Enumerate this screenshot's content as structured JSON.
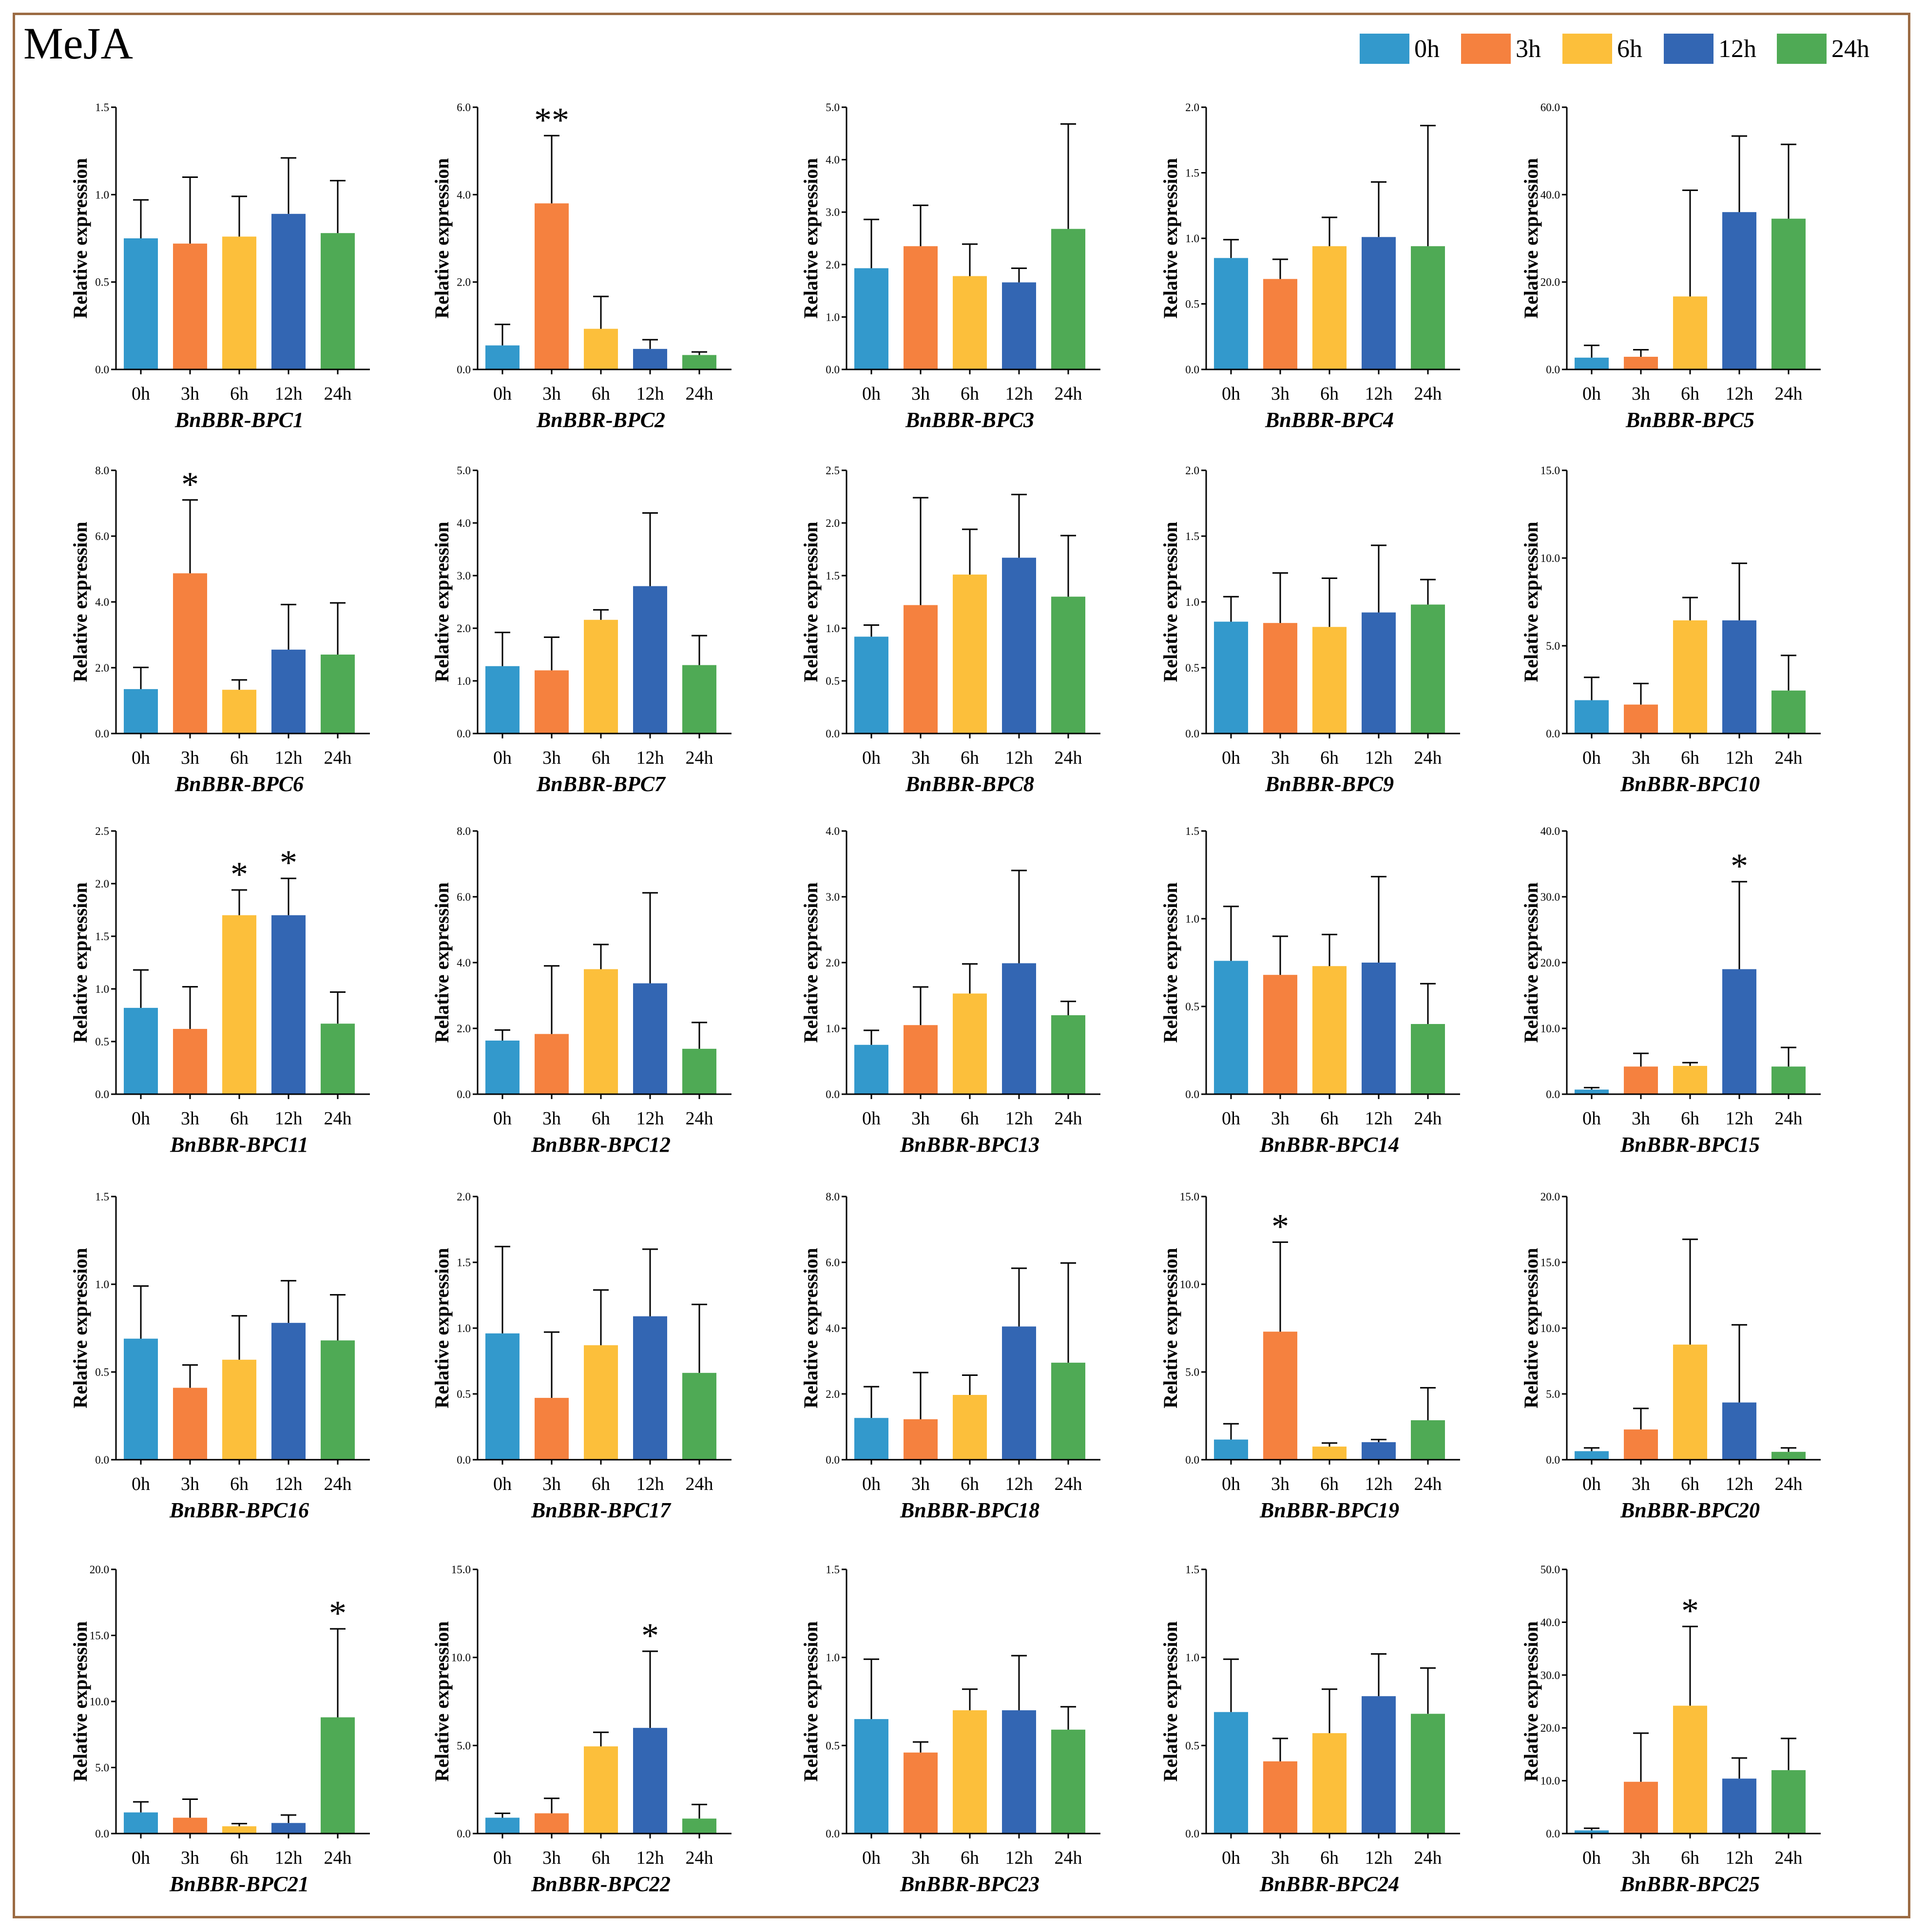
{
  "title": "MeJA",
  "legend": [
    {
      "label": "0h",
      "color": "#3399cc"
    },
    {
      "label": "3h",
      "color": "#f5813f"
    },
    {
      "label": "6h",
      "color": "#fcbf3b"
    },
    {
      "label": "12h",
      "color": "#3366b3"
    },
    {
      "label": "24h",
      "color": "#4faa55"
    }
  ],
  "chart_data": [
    {
      "type": "bar",
      "title": "BnBBR-BPC1",
      "ylabel": "Relative expression",
      "categories": [
        "0h",
        "3h",
        "6h",
        "12h",
        "24h"
      ],
      "ylim": [
        0,
        1.5
      ],
      "yticks": [
        "0.0",
        "0.5",
        "1.0",
        "1.5"
      ],
      "values": [
        0.75,
        0.72,
        0.76,
        0.89,
        0.78
      ],
      "errors": [
        0.22,
        0.38,
        0.23,
        0.32,
        0.3
      ],
      "significance": [
        "",
        "",
        "",
        "",
        ""
      ]
    },
    {
      "type": "bar",
      "title": "BnBBR-BPC2",
      "ylabel": "Relative expression",
      "categories": [
        "0h",
        "3h",
        "6h",
        "12h",
        "24h"
      ],
      "ylim": [
        0,
        6
      ],
      "yticks": [
        "0.0",
        "2.0",
        "4.0",
        "6.0"
      ],
      "values": [
        0.55,
        3.8,
        0.93,
        0.47,
        0.33
      ],
      "errors": [
        0.48,
        1.55,
        0.74,
        0.21,
        0.07
      ],
      "significance": [
        "",
        "**",
        "",
        "",
        ""
      ]
    },
    {
      "type": "bar",
      "title": "BnBBR-BPC3",
      "ylabel": "Relative expression",
      "categories": [
        "0h",
        "3h",
        "6h",
        "12h",
        "24h"
      ],
      "ylim": [
        0,
        5
      ],
      "yticks": [
        "0.0",
        "1.0",
        "2.0",
        "3.0",
        "4.0",
        "5.0"
      ],
      "values": [
        1.93,
        2.35,
        1.78,
        1.66,
        2.68
      ],
      "errors": [
        0.93,
        0.78,
        0.61,
        0.27,
        2.0
      ],
      "significance": [
        "",
        "",
        "",
        "",
        ""
      ]
    },
    {
      "type": "bar",
      "title": "BnBBR-BPC4",
      "ylabel": "Relative expression",
      "categories": [
        "0h",
        "3h",
        "6h",
        "12h",
        "24h"
      ],
      "ylim": [
        0,
        2
      ],
      "yticks": [
        "0.0",
        "0.5",
        "1.0",
        "1.5",
        "2.0"
      ],
      "values": [
        0.85,
        0.69,
        0.94,
        1.01,
        0.94
      ],
      "errors": [
        0.14,
        0.15,
        0.22,
        0.42,
        0.92
      ],
      "significance": [
        "",
        "",
        "",
        "",
        ""
      ]
    },
    {
      "type": "bar",
      "title": "BnBBR-BPC5",
      "ylabel": "Relative expression",
      "categories": [
        "0h",
        "3h",
        "6h",
        "12h",
        "24h"
      ],
      "ylim": [
        0,
        60
      ],
      "yticks": [
        "0.0",
        "20.0",
        "40.0",
        "60.0"
      ],
      "values": [
        2.7,
        2.9,
        16.7,
        36.0,
        34.5
      ],
      "errors": [
        2.8,
        1.6,
        24.3,
        17.4,
        17.0
      ],
      "significance": [
        "",
        "",
        "",
        "",
        ""
      ]
    },
    {
      "type": "bar",
      "title": "BnBBR-BPC6",
      "ylabel": "Relative expression",
      "categories": [
        "0h",
        "3h",
        "6h",
        "12h",
        "24h"
      ],
      "ylim": [
        0,
        8
      ],
      "yticks": [
        "0.0",
        "2.0",
        "4.0",
        "6.0",
        "8.0"
      ],
      "values": [
        1.35,
        4.87,
        1.33,
        2.55,
        2.4
      ],
      "errors": [
        0.66,
        2.23,
        0.3,
        1.37,
        1.57
      ],
      "significance": [
        "",
        "*",
        "",
        "",
        ""
      ]
    },
    {
      "type": "bar",
      "title": "BnBBR-BPC7",
      "ylabel": "Relative expression",
      "categories": [
        "0h",
        "3h",
        "6h",
        "12h",
        "24h"
      ],
      "ylim": [
        0,
        5
      ],
      "yticks": [
        "0.0",
        "1.0",
        "2.0",
        "3.0",
        "4.0",
        "5.0"
      ],
      "values": [
        1.28,
        1.2,
        2.16,
        2.8,
        1.3
      ],
      "errors": [
        0.64,
        0.63,
        0.19,
        1.39,
        0.56
      ],
      "significance": [
        "",
        "",
        "",
        "",
        ""
      ]
    },
    {
      "type": "bar",
      "title": "BnBBR-BPC8",
      "ylabel": "Relative expression",
      "categories": [
        "0h",
        "3h",
        "6h",
        "12h",
        "24h"
      ],
      "ylim": [
        0,
        2.5
      ],
      "yticks": [
        "0.0",
        "0.5",
        "1.0",
        "1.5",
        "2.0",
        "2.5"
      ],
      "values": [
        0.92,
        1.22,
        1.51,
        1.67,
        1.3
      ],
      "errors": [
        0.11,
        1.02,
        0.43,
        0.6,
        0.58
      ],
      "significance": [
        "",
        "",
        "",
        "",
        ""
      ]
    },
    {
      "type": "bar",
      "title": "BnBBR-BPC9",
      "ylabel": "Relative expression",
      "categories": [
        "0h",
        "3h",
        "6h",
        "12h",
        "24h"
      ],
      "ylim": [
        0,
        2
      ],
      "yticks": [
        "0.0",
        "0.5",
        "1.0",
        "1.5",
        "2.0"
      ],
      "values": [
        0.85,
        0.84,
        0.81,
        0.92,
        0.98
      ],
      "errors": [
        0.19,
        0.38,
        0.37,
        0.51,
        0.19
      ],
      "significance": [
        "",
        "",
        "",
        "",
        ""
      ]
    },
    {
      "type": "bar",
      "title": "BnBBR-BPC10",
      "ylabel": "Relative expression",
      "categories": [
        "0h",
        "3h",
        "6h",
        "12h",
        "24h"
      ],
      "ylim": [
        0,
        15
      ],
      "yticks": [
        "0.0",
        "5.0",
        "10.0",
        "15.0"
      ],
      "values": [
        1.9,
        1.65,
        6.45,
        6.45,
        2.45
      ],
      "errors": [
        1.3,
        1.2,
        1.3,
        3.25,
        2.0
      ],
      "significance": [
        "",
        "",
        "",
        "",
        ""
      ]
    },
    {
      "type": "bar",
      "title": "BnBBR-BPC11",
      "ylabel": "Relative expression",
      "categories": [
        "0h",
        "3h",
        "6h",
        "12h",
        "24h"
      ],
      "ylim": [
        0,
        2.5
      ],
      "yticks": [
        "0.0",
        "0.5",
        "1.0",
        "1.5",
        "2.0",
        "2.5"
      ],
      "values": [
        0.82,
        0.62,
        1.7,
        1.7,
        0.67
      ],
      "errors": [
        0.36,
        0.4,
        0.24,
        0.35,
        0.3
      ],
      "significance": [
        "",
        "",
        "*",
        "*",
        ""
      ]
    },
    {
      "type": "bar",
      "title": "BnBBR-BPC12",
      "ylabel": "Relative expression",
      "categories": [
        "0h",
        "3h",
        "6h",
        "12h",
        "24h"
      ],
      "ylim": [
        0,
        8
      ],
      "yticks": [
        "0.0",
        "2.0",
        "4.0",
        "6.0",
        "8.0"
      ],
      "values": [
        1.63,
        1.83,
        3.8,
        3.37,
        1.38
      ],
      "errors": [
        0.32,
        2.07,
        0.75,
        2.75,
        0.8
      ],
      "significance": [
        "",
        "",
        "",
        "",
        ""
      ]
    },
    {
      "type": "bar",
      "title": "BnBBR-BPC13",
      "ylabel": "Relative expression",
      "categories": [
        "0h",
        "3h",
        "6h",
        "12h",
        "24h"
      ],
      "ylim": [
        0,
        4
      ],
      "yticks": [
        "0.0",
        "1.0",
        "2.0",
        "3.0",
        "4.0"
      ],
      "values": [
        0.75,
        1.05,
        1.53,
        1.99,
        1.2
      ],
      "errors": [
        0.22,
        0.58,
        0.45,
        1.41,
        0.21
      ],
      "significance": [
        "",
        "",
        "",
        "",
        ""
      ]
    },
    {
      "type": "bar",
      "title": "BnBBR-BPC14",
      "ylabel": "Relative expression",
      "categories": [
        "0h",
        "3h",
        "6h",
        "12h",
        "24h"
      ],
      "ylim": [
        0,
        1.5
      ],
      "yticks": [
        "0.0",
        "0.5",
        "1.0",
        "1.5"
      ],
      "values": [
        0.76,
        0.68,
        0.73,
        0.75,
        0.4
      ],
      "errors": [
        0.31,
        0.22,
        0.18,
        0.49,
        0.23
      ],
      "significance": [
        "",
        "",
        "",
        "",
        ""
      ]
    },
    {
      "type": "bar",
      "title": "BnBBR-BPC15",
      "ylabel": "Relative expression",
      "categories": [
        "0h",
        "3h",
        "6h",
        "12h",
        "24h"
      ],
      "ylim": [
        0,
        40
      ],
      "yticks": [
        "0.0",
        "10.0",
        "20.0",
        "30.0",
        "40.0"
      ],
      "values": [
        0.7,
        4.2,
        4.3,
        19.0,
        4.2
      ],
      "errors": [
        0.3,
        2.0,
        0.5,
        13.3,
        2.9
      ],
      "significance": [
        "",
        "",
        "",
        "*",
        ""
      ]
    },
    {
      "type": "bar",
      "title": "BnBBR-BPC16",
      "ylabel": "Relative expression",
      "categories": [
        "0h",
        "3h",
        "6h",
        "12h",
        "24h"
      ],
      "ylim": [
        0,
        1.5
      ],
      "yticks": [
        "0.0",
        "0.5",
        "1.0",
        "1.5"
      ],
      "values": [
        0.69,
        0.41,
        0.57,
        0.78,
        0.68
      ],
      "errors": [
        0.3,
        0.13,
        0.25,
        0.24,
        0.26
      ],
      "significance": [
        "",
        "",
        "",
        "",
        ""
      ]
    },
    {
      "type": "bar",
      "title": "BnBBR-BPC17",
      "ylabel": "Relative expression",
      "categories": [
        "0h",
        "3h",
        "6h",
        "12h",
        "24h"
      ],
      "ylim": [
        0,
        2
      ],
      "yticks": [
        "0.0",
        "0.5",
        "1.0",
        "1.5",
        "2.0"
      ],
      "values": [
        0.96,
        0.47,
        0.87,
        1.09,
        0.66
      ],
      "errors": [
        0.66,
        0.5,
        0.42,
        0.51,
        0.52
      ],
      "significance": [
        "",
        "",
        "",
        "",
        ""
      ]
    },
    {
      "type": "bar",
      "title": "BnBBR-BPC18",
      "ylabel": "Relative expression",
      "categories": [
        "0h",
        "3h",
        "6h",
        "12h",
        "24h"
      ],
      "ylim": [
        0,
        8
      ],
      "yticks": [
        "0.0",
        "2.0",
        "4.0",
        "6.0",
        "8.0"
      ],
      "values": [
        1.27,
        1.23,
        1.97,
        4.05,
        2.95
      ],
      "errors": [
        0.95,
        1.42,
        0.6,
        1.77,
        3.03
      ],
      "significance": [
        "",
        "",
        "",
        "",
        ""
      ]
    },
    {
      "type": "bar",
      "title": "BnBBR-BPC19",
      "ylabel": "Relative expression",
      "categories": [
        "0h",
        "3h",
        "6h",
        "12h",
        "24h"
      ],
      "ylim": [
        0,
        15
      ],
      "yticks": [
        "0.0",
        "5.0",
        "10.0",
        "15.0"
      ],
      "values": [
        1.15,
        7.3,
        0.75,
        1.0,
        2.25
      ],
      "errors": [
        0.9,
        5.1,
        0.2,
        0.15,
        1.85
      ],
      "significance": [
        "",
        "*",
        "",
        "",
        ""
      ]
    },
    {
      "type": "bar",
      "title": "BnBBR-BPC20",
      "ylabel": "Relative expression",
      "categories": [
        "0h",
        "3h",
        "6h",
        "12h",
        "24h"
      ],
      "ylim": [
        0,
        20
      ],
      "yticks": [
        "0.0",
        "5.0",
        "10.0",
        "15.0",
        "20.0"
      ],
      "values": [
        0.65,
        2.3,
        8.75,
        4.35,
        0.6
      ],
      "errors": [
        0.25,
        1.6,
        8.0,
        5.9,
        0.3
      ],
      "significance": [
        "",
        "",
        "",
        "",
        ""
      ]
    },
    {
      "type": "bar",
      "title": "BnBBR-BPC21",
      "ylabel": "Relative expression",
      "categories": [
        "0h",
        "3h",
        "6h",
        "12h",
        "24h"
      ],
      "ylim": [
        0,
        20
      ],
      "yticks": [
        "0.0",
        "5.0",
        "10.0",
        "15.0",
        "20.0"
      ],
      "values": [
        1.6,
        1.2,
        0.55,
        0.8,
        8.8
      ],
      "errors": [
        0.8,
        1.4,
        0.2,
        0.6,
        6.7
      ],
      "significance": [
        "",
        "",
        "",
        "",
        "*"
      ]
    },
    {
      "type": "bar",
      "title": "BnBBR-BPC22",
      "ylabel": "Relative expression",
      "categories": [
        "0h",
        "3h",
        "6h",
        "12h",
        "24h"
      ],
      "ylim": [
        0,
        15
      ],
      "yticks": [
        "0.0",
        "5.0",
        "10.0",
        "15.0"
      ],
      "values": [
        0.9,
        1.15,
        4.95,
        6.0,
        0.85
      ],
      "errors": [
        0.25,
        0.85,
        0.8,
        4.35,
        0.8
      ],
      "significance": [
        "",
        "",
        "",
        "*",
        ""
      ]
    },
    {
      "type": "bar",
      "title": "BnBBR-BPC23",
      "ylabel": "Relative expression",
      "categories": [
        "0h",
        "3h",
        "6h",
        "12h",
        "24h"
      ],
      "ylim": [
        0,
        1.5
      ],
      "yticks": [
        "0.0",
        "0.5",
        "1.0",
        "1.5"
      ],
      "values": [
        0.65,
        0.46,
        0.7,
        0.7,
        0.59
      ],
      "errors": [
        0.34,
        0.06,
        0.12,
        0.31,
        0.13
      ],
      "significance": [
        "",
        "",
        "",
        "",
        ""
      ]
    },
    {
      "type": "bar",
      "title": "BnBBR-BPC24",
      "ylabel": "Relative expression",
      "categories": [
        "0h",
        "3h",
        "6h",
        "12h",
        "24h"
      ],
      "ylim": [
        0,
        1.5
      ],
      "yticks": [
        "0.0",
        "0.5",
        "1.0",
        "1.5"
      ],
      "values": [
        0.69,
        0.41,
        0.57,
        0.78,
        0.68
      ],
      "errors": [
        0.3,
        0.13,
        0.25,
        0.24,
        0.26
      ],
      "significance": [
        "",
        "",
        "",
        "",
        ""
      ]
    },
    {
      "type": "bar",
      "title": "BnBBR-BPC25",
      "ylabel": "Relative expression",
      "categories": [
        "0h",
        "3h",
        "6h",
        "12h",
        "24h"
      ],
      "ylim": [
        0,
        50
      ],
      "yticks": [
        "0.0",
        "10.0",
        "20.0",
        "30.0",
        "40.0",
        "50.0"
      ],
      "values": [
        0.6,
        9.8,
        24.2,
        10.4,
        12.0
      ],
      "errors": [
        0.4,
        9.2,
        15.0,
        3.9,
        6.0
      ],
      "significance": [
        "",
        "",
        "*",
        "",
        ""
      ]
    }
  ]
}
